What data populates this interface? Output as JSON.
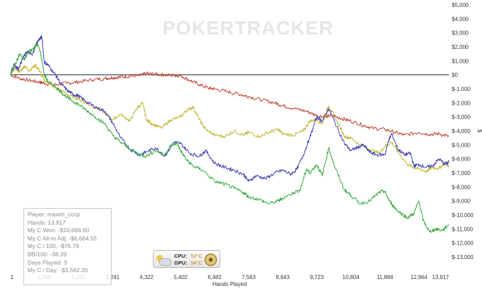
{
  "chart_data": {
    "type": "line",
    "watermark": "POKERTRACKER",
    "xlabel": "Hands Played",
    "ylabel": "$",
    "xlim": [
      1,
      13917
    ],
    "ylim": [
      -13000,
      5000
    ],
    "x_ticks": [
      1,
      1080,
      2161,
      3241,
      4322,
      5402,
      6482,
      7563,
      8643,
      9723,
      10804,
      11884,
      12964,
      13917
    ],
    "x_tick_labels": [
      "1",
      "1,080",
      "2,161",
      "3,241",
      "4,322",
      "5,402",
      "6,482",
      "7,563",
      "8,643",
      "9,723",
      "10,804",
      "11,884",
      "12,964",
      "13,917"
    ],
    "y_ticks": [
      5000,
      4000,
      3000,
      2000,
      1000,
      0,
      -1000,
      -2000,
      -3000,
      -4000,
      -5000,
      -6000,
      -7000,
      -8000,
      -9000,
      -10000,
      -11000,
      -12000,
      -13000
    ],
    "y_tick_labels": [
      "$5,000",
      "$4,000",
      "$3,000",
      "$2,000",
      "$1,000",
      "$0",
      "$-1,000",
      "$-2,000",
      "$-3,000",
      "$-4,000",
      "$-5,000",
      "$-6,000",
      "$-7,000",
      "$-8,000",
      "$-9,000",
      "$-10,000",
      "$-11,000",
      "$-12,000",
      "$-13,000"
    ],
    "zero_line": true,
    "series": [
      {
        "color": "#c03a2b",
        "points": [
          [
            1,
            0
          ],
          [
            300,
            -250
          ],
          [
            600,
            -400
          ],
          [
            900,
            -500
          ],
          [
            1080,
            -600
          ],
          [
            1400,
            -700
          ],
          [
            1800,
            -600
          ],
          [
            2161,
            -500
          ],
          [
            2600,
            -350
          ],
          [
            3000,
            -250
          ],
          [
            3241,
            -200
          ],
          [
            3500,
            -150
          ],
          [
            3800,
            -80
          ],
          [
            4100,
            -50
          ],
          [
            4322,
            100
          ],
          [
            4600,
            50
          ],
          [
            4900,
            0
          ],
          [
            5200,
            -50
          ],
          [
            5402,
            -50
          ],
          [
            5700,
            -400
          ],
          [
            6000,
            -700
          ],
          [
            6300,
            -950
          ],
          [
            6482,
            -1000
          ],
          [
            6900,
            -1200
          ],
          [
            7300,
            -1400
          ],
          [
            7563,
            -1550
          ],
          [
            8000,
            -1800
          ],
          [
            8400,
            -2000
          ],
          [
            8643,
            -2200
          ],
          [
            9000,
            -2400
          ],
          [
            9400,
            -2600
          ],
          [
            9723,
            -2900
          ],
          [
            10000,
            -3000
          ],
          [
            10200,
            -2900
          ],
          [
            10500,
            -3100
          ],
          [
            10804,
            -3300
          ],
          [
            11200,
            -3600
          ],
          [
            11500,
            -3800
          ],
          [
            11884,
            -3900
          ],
          [
            12200,
            -4100
          ],
          [
            12500,
            -4300
          ],
          [
            12964,
            -4100
          ],
          [
            13300,
            -4250
          ],
          [
            13600,
            -4200
          ],
          [
            13917,
            -4400
          ]
        ]
      },
      {
        "color": "#c2b83a",
        "points": [
          [
            1,
            0
          ],
          [
            150,
            500
          ],
          [
            300,
            200
          ],
          [
            450,
            650
          ],
          [
            600,
            300
          ],
          [
            800,
            700
          ],
          [
            950,
            200
          ],
          [
            1080,
            -400
          ],
          [
            1300,
            -700
          ],
          [
            1600,
            -1100
          ],
          [
            1900,
            -1500
          ],
          [
            2161,
            -1700
          ],
          [
            2400,
            -2000
          ],
          [
            2700,
            -2300
          ],
          [
            3000,
            -2700
          ],
          [
            3241,
            -3200
          ],
          [
            3500,
            -2800
          ],
          [
            3800,
            -3300
          ],
          [
            4000,
            -2400
          ],
          [
            4200,
            -2000
          ],
          [
            4322,
            -3200
          ],
          [
            4500,
            -3500
          ],
          [
            4800,
            -3800
          ],
          [
            5100,
            -3200
          ],
          [
            5402,
            -3000
          ],
          [
            5600,
            -2500
          ],
          [
            5800,
            -2300
          ],
          [
            6000,
            -3200
          ],
          [
            6200,
            -3900
          ],
          [
            6482,
            -4300
          ],
          [
            6800,
            -4400
          ],
          [
            7100,
            -4000
          ],
          [
            7400,
            -4300
          ],
          [
            7563,
            -4100
          ],
          [
            7900,
            -4400
          ],
          [
            8200,
            -4100
          ],
          [
            8500,
            -3900
          ],
          [
            8643,
            -4200
          ],
          [
            9000,
            -4300
          ],
          [
            9300,
            -4000
          ],
          [
            9500,
            -3300
          ],
          [
            9723,
            -3200
          ],
          [
            9900,
            -3500
          ],
          [
            10100,
            -2200
          ],
          [
            10300,
            -3000
          ],
          [
            10600,
            -4400
          ],
          [
            10804,
            -4500
          ],
          [
            11100,
            -5000
          ],
          [
            11400,
            -5300
          ],
          [
            11700,
            -5600
          ],
          [
            11884,
            -5100
          ],
          [
            12100,
            -4800
          ],
          [
            12300,
            -5500
          ],
          [
            12600,
            -6400
          ],
          [
            12800,
            -6600
          ],
          [
            12964,
            -6700
          ],
          [
            13200,
            -6900
          ],
          [
            13400,
            -6600
          ],
          [
            13600,
            -6700
          ],
          [
            13800,
            -6200
          ],
          [
            13917,
            -6600
          ]
        ]
      },
      {
        "color": "#3c3cb4",
        "points": [
          [
            1,
            0
          ],
          [
            120,
            800
          ],
          [
            250,
            400
          ],
          [
            400,
            1200
          ],
          [
            550,
            1700
          ],
          [
            700,
            1400
          ],
          [
            800,
            2100
          ],
          [
            900,
            2500
          ],
          [
            1000,
            2700
          ],
          [
            1080,
            900
          ],
          [
            1200,
            700
          ],
          [
            1400,
            100
          ],
          [
            1600,
            -600
          ],
          [
            1800,
            -1100
          ],
          [
            2000,
            -1400
          ],
          [
            2161,
            -1500
          ],
          [
            2400,
            -1900
          ],
          [
            2700,
            -2300
          ],
          [
            3000,
            -2600
          ],
          [
            3241,
            -3400
          ],
          [
            3500,
            -4500
          ],
          [
            3800,
            -5300
          ],
          [
            4100,
            -5700
          ],
          [
            4322,
            -5500
          ],
          [
            4600,
            -5200
          ],
          [
            4900,
            -5800
          ],
          [
            5200,
            -4800
          ],
          [
            5402,
            -4900
          ],
          [
            5700,
            -5600
          ],
          [
            6000,
            -5800
          ],
          [
            6200,
            -5400
          ],
          [
            6482,
            -6300
          ],
          [
            6800,
            -6600
          ],
          [
            7100,
            -6800
          ],
          [
            7400,
            -7100
          ],
          [
            7563,
            -7600
          ],
          [
            7800,
            -7200
          ],
          [
            8100,
            -7400
          ],
          [
            8400,
            -7000
          ],
          [
            8643,
            -6800
          ],
          [
            8900,
            -7100
          ],
          [
            9100,
            -6700
          ],
          [
            9300,
            -5700
          ],
          [
            9500,
            -4500
          ],
          [
            9723,
            -3000
          ],
          [
            9900,
            -3300
          ],
          [
            10100,
            -2400
          ],
          [
            10300,
            -3400
          ],
          [
            10600,
            -4900
          ],
          [
            10804,
            -5400
          ],
          [
            11000,
            -5200
          ],
          [
            11200,
            -5000
          ],
          [
            11400,
            -5500
          ],
          [
            11600,
            -5700
          ],
          [
            11884,
            -5700
          ],
          [
            12000,
            -4700
          ],
          [
            12100,
            -4200
          ],
          [
            12300,
            -5300
          ],
          [
            12500,
            -5700
          ],
          [
            12700,
            -5600
          ],
          [
            12800,
            -6500
          ],
          [
            12964,
            -6400
          ],
          [
            13200,
            -6600
          ],
          [
            13400,
            -6500
          ],
          [
            13600,
            -6000
          ],
          [
            13800,
            -6400
          ],
          [
            13917,
            -6200
          ]
        ]
      },
      {
        "color": "#36a83c",
        "points": [
          [
            1,
            0
          ],
          [
            150,
            700
          ],
          [
            300,
            1500
          ],
          [
            450,
            1100
          ],
          [
            600,
            1700
          ],
          [
            750,
            1900
          ],
          [
            850,
            2200
          ],
          [
            950,
            1700
          ],
          [
            1080,
            0
          ],
          [
            1200,
            -500
          ],
          [
            1400,
            -800
          ],
          [
            1600,
            -1200
          ],
          [
            1800,
            -1600
          ],
          [
            2000,
            -1900
          ],
          [
            2161,
            -2100
          ],
          [
            2400,
            -2500
          ],
          [
            2700,
            -3000
          ],
          [
            3000,
            -3500
          ],
          [
            3241,
            -4300
          ],
          [
            3500,
            -4800
          ],
          [
            3800,
            -5300
          ],
          [
            4100,
            -5700
          ],
          [
            4322,
            -5800
          ],
          [
            4600,
            -5400
          ],
          [
            4900,
            -5700
          ],
          [
            5100,
            -5000
          ],
          [
            5300,
            -4900
          ],
          [
            5402,
            -5400
          ],
          [
            5600,
            -6100
          ],
          [
            5800,
            -6500
          ],
          [
            6100,
            -6800
          ],
          [
            6482,
            -7600
          ],
          [
            6800,
            -7800
          ],
          [
            7100,
            -8100
          ],
          [
            7400,
            -8400
          ],
          [
            7563,
            -8700
          ],
          [
            7900,
            -8900
          ],
          [
            8200,
            -9200
          ],
          [
            8500,
            -9000
          ],
          [
            8643,
            -8800
          ],
          [
            9000,
            -8400
          ],
          [
            9200,
            -8200
          ],
          [
            9400,
            -6700
          ],
          [
            9500,
            -7000
          ],
          [
            9723,
            -6400
          ],
          [
            9900,
            -7200
          ],
          [
            10100,
            -5200
          ],
          [
            10300,
            -6600
          ],
          [
            10600,
            -8200
          ],
          [
            10804,
            -8600
          ],
          [
            11100,
            -9200
          ],
          [
            11400,
            -9000
          ],
          [
            11700,
            -8400
          ],
          [
            11884,
            -8300
          ],
          [
            12000,
            -8900
          ],
          [
            12200,
            -9500
          ],
          [
            12400,
            -9900
          ],
          [
            12600,
            -10200
          ],
          [
            12800,
            -9900
          ],
          [
            12964,
            -9000
          ],
          [
            13100,
            -10400
          ],
          [
            13300,
            -11200
          ],
          [
            13500,
            -11000
          ],
          [
            13700,
            -11100
          ],
          [
            13917,
            -10700
          ]
        ]
      }
    ]
  },
  "info_box": {
    "lines": [
      "Player: maxim_cccp",
      "Hands: 13,917",
      "My C Won: -$10,686.60",
      "My C All-In Adj: -$6,664.55",
      "My C / 100: -$76.79",
      "BB/100: -38.39",
      "Days Played: 3",
      "My C / Day: -$3,562.20"
    ]
  },
  "gadget": {
    "cpu_label": "CPU:",
    "cpu_value": "52°C",
    "gpu_label": "GPU:",
    "gpu_value": "54°C"
  }
}
